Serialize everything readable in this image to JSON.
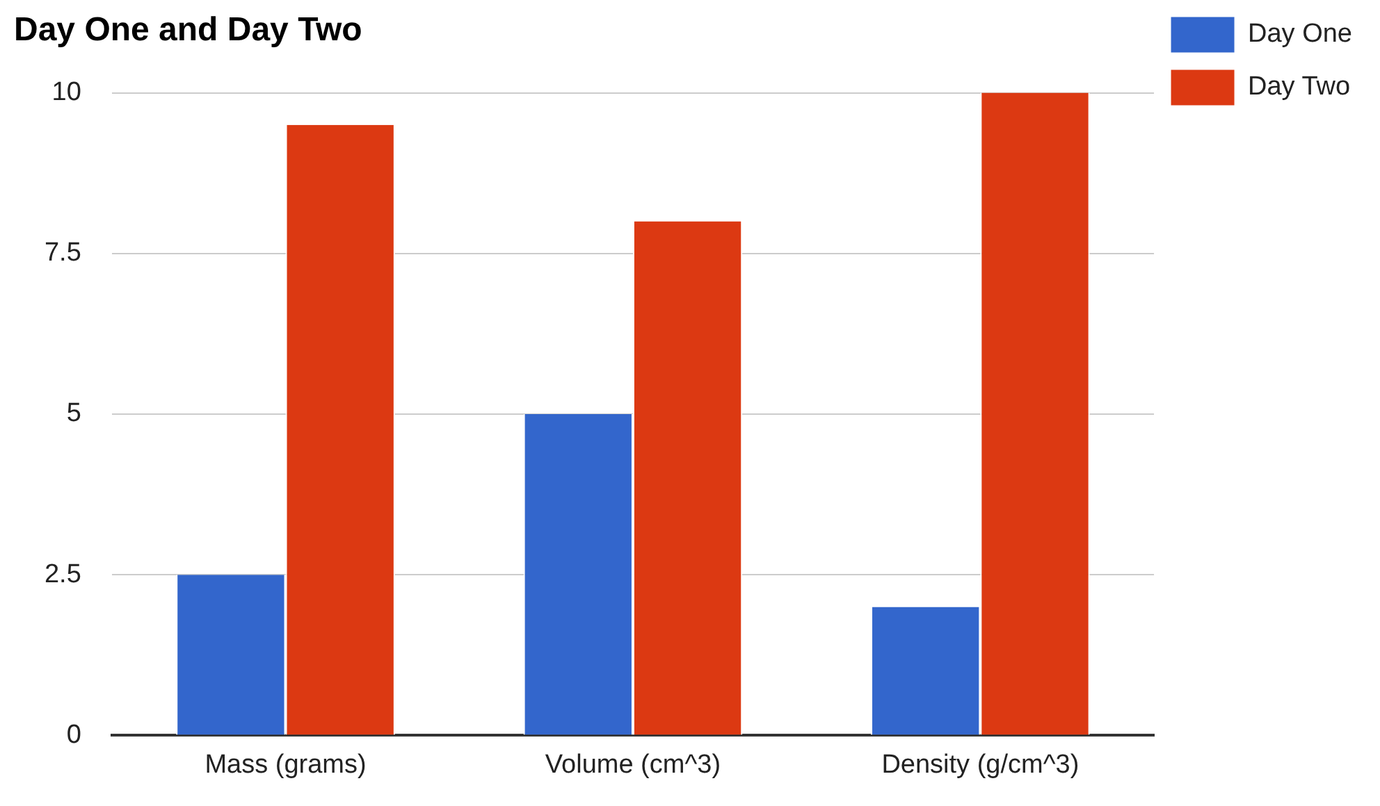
{
  "chart_data": {
    "type": "bar",
    "title": "Day One and Day Two",
    "categories": [
      "Mass (grams)",
      "Volume (cm^3)",
      "Density (g/cm^3)"
    ],
    "series": [
      {
        "name": "Day One",
        "color": "#3366cc",
        "values": [
          2.5,
          5,
          2
        ]
      },
      {
        "name": "Day Two",
        "color": "#dc3912",
        "values": [
          9.5,
          8,
          10
        ]
      }
    ],
    "ylim": [
      0,
      10
    ],
    "yticks": [
      0,
      2.5,
      5,
      7.5,
      10
    ],
    "grid": "y",
    "legend": "top right"
  }
}
